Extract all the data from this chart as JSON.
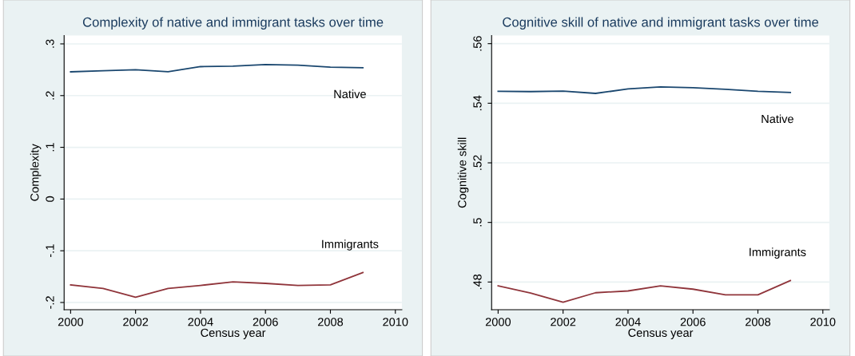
{
  "chart_data": [
    {
      "type": "line",
      "title": "Complexity of native and immigrant tasks over time",
      "xlabel": "Census year",
      "ylabel": "Complexity",
      "x": [
        2000,
        2001,
        2002,
        2003,
        2004,
        2005,
        2006,
        2007,
        2008,
        2009
      ],
      "series": [
        {
          "name": "Native",
          "color": "#1a476f",
          "values": [
            0.246,
            0.248,
            0.25,
            0.246,
            0.256,
            0.257,
            0.26,
            0.259,
            0.255,
            0.254
          ]
        },
        {
          "name": "Immigrants",
          "color": "#90353b",
          "values": [
            -0.166,
            -0.173,
            -0.19,
            -0.173,
            -0.167,
            -0.16,
            -0.163,
            -0.167,
            -0.166,
            -0.142
          ]
        }
      ],
      "xlim": [
        1999.8,
        2010.2
      ],
      "xticks": [
        2000,
        2002,
        2004,
        2006,
        2008,
        2010
      ],
      "ylim": [
        -0.214,
        0.316
      ],
      "yticks": [
        {
          "value": -0.2,
          "label": "-.2"
        },
        {
          "value": -0.1,
          "label": "-.1"
        },
        0,
        {
          "value": 0.1,
          "label": ".1"
        },
        {
          "value": 0.2,
          "label": ".2"
        },
        {
          "value": 0.3,
          "label": ".3"
        }
      ],
      "grid": "y",
      "marker": "none",
      "line_style": "solid"
    },
    {
      "type": "line",
      "title": "Cognitive skill of native and immigrant tasks over time",
      "xlabel": "Census year",
      "ylabel": "Cognitive skill",
      "x": [
        2000,
        2001,
        2002,
        2003,
        2004,
        2005,
        2006,
        2007,
        2008,
        2009
      ],
      "series": [
        {
          "name": "Native",
          "color": "#1a476f",
          "values": [
            0.544,
            0.5439,
            0.5441,
            0.5433,
            0.5448,
            0.5455,
            0.5452,
            0.5447,
            0.544,
            0.5436
          ]
        },
        {
          "name": "Immigrants",
          "color": "#90353b",
          "values": [
            0.4787,
            0.4763,
            0.4732,
            0.4764,
            0.477,
            0.4787,
            0.4776,
            0.4757,
            0.4757,
            0.4805
          ]
        }
      ],
      "xlim": [
        1999.8,
        2010.2
      ],
      "xticks": [
        2000,
        2002,
        2004,
        2006,
        2008,
        2010
      ],
      "ylim": [
        0.4707,
        0.5627
      ],
      "yticks": [
        {
          "value": 0.48,
          "label": ".48"
        },
        {
          "value": 0.5,
          "label": ".5"
        },
        {
          "value": 0.52,
          "label": ".52"
        },
        {
          "value": 0.54,
          "label": ".54"
        },
        {
          "value": 0.56,
          "label": ".56"
        }
      ],
      "grid": "y",
      "marker": "none",
      "line_style": "solid"
    }
  ]
}
